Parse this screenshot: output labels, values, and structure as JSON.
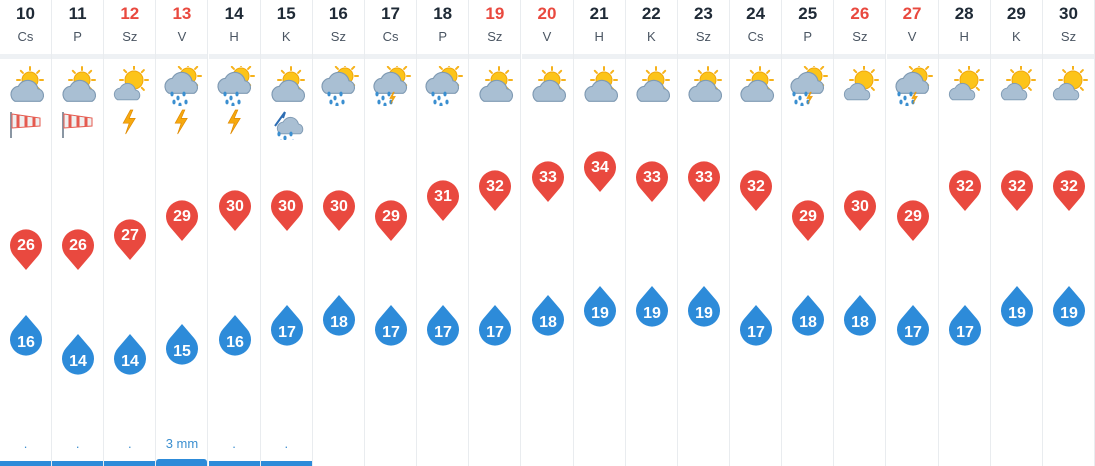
{
  "colors": {
    "max": "#e9493f",
    "min": "#2d8bd9",
    "weekend": "#e9493f",
    "precip": "#3b8fd0"
  },
  "scale": {
    "top_temp": 34,
    "top_y": 166,
    "bottom_temp": 14,
    "bottom_y": 360
  },
  "days": [
    {
      "num": "10",
      "letter": "Cs",
      "weekend": false,
      "icon": "partly-cloudy-icon",
      "extra": "windsock-icon",
      "max": 26,
      "min": 16,
      "precip": ".",
      "bar": true
    },
    {
      "num": "11",
      "letter": "P",
      "weekend": false,
      "icon": "partly-cloudy-icon",
      "extra": "windsock-icon",
      "max": 26,
      "min": 14,
      "precip": ".",
      "bar": true
    },
    {
      "num": "12",
      "letter": "Sz",
      "weekend": true,
      "icon": "sunny-cloud-icon",
      "extra": "lightning-icon",
      "max": 27,
      "min": 14,
      "precip": ".",
      "bar": true
    },
    {
      "num": "13",
      "letter": "V",
      "weekend": true,
      "icon": "rain-sun-cloud-icon",
      "extra": "lightning-icon",
      "max": 29,
      "min": 15,
      "precip": "3 mm",
      "bar": true,
      "thick": true
    },
    {
      "num": "14",
      "letter": "H",
      "weekend": false,
      "icon": "rain-sun-cloud-icon",
      "extra": "lightning-icon",
      "max": 30,
      "min": 16,
      "precip": ".",
      "bar": true
    },
    {
      "num": "15",
      "letter": "K",
      "weekend": false,
      "icon": "partly-cloudy-icon",
      "extra": "hail-storm-icon",
      "max": 30,
      "min": 17,
      "precip": ".",
      "bar": true
    },
    {
      "num": "16",
      "letter": "Sz",
      "weekend": false,
      "icon": "rain-sun-cloud-icon",
      "extra": "",
      "max": 30,
      "min": 18,
      "precip": "",
      "bar": false
    },
    {
      "num": "17",
      "letter": "Cs",
      "weekend": false,
      "icon": "thunder-rain-icon",
      "extra": "",
      "max": 29,
      "min": 17,
      "precip": "",
      "bar": false
    },
    {
      "num": "18",
      "letter": "P",
      "weekend": false,
      "icon": "rain-sun-cloud-icon",
      "extra": "",
      "max": 31,
      "min": 17,
      "precip": "",
      "bar": false
    },
    {
      "num": "19",
      "letter": "Sz",
      "weekend": true,
      "icon": "partly-cloudy-icon",
      "extra": "",
      "max": 32,
      "min": 17,
      "precip": "",
      "bar": false
    },
    {
      "num": "20",
      "letter": "V",
      "weekend": true,
      "icon": "partly-cloudy-icon",
      "extra": "",
      "max": 33,
      "min": 18,
      "precip": "",
      "bar": false
    },
    {
      "num": "21",
      "letter": "H",
      "weekend": false,
      "icon": "partly-cloudy-icon",
      "extra": "",
      "max": 34,
      "min": 19,
      "precip": "",
      "bar": false
    },
    {
      "num": "22",
      "letter": "K",
      "weekend": false,
      "icon": "partly-cloudy-icon",
      "extra": "",
      "max": 33,
      "min": 19,
      "precip": "",
      "bar": false
    },
    {
      "num": "23",
      "letter": "Sz",
      "weekend": false,
      "icon": "partly-cloudy-icon",
      "extra": "",
      "max": 33,
      "min": 19,
      "precip": "",
      "bar": false
    },
    {
      "num": "24",
      "letter": "Cs",
      "weekend": false,
      "icon": "partly-cloudy-icon",
      "extra": "",
      "max": 32,
      "min": 17,
      "precip": "",
      "bar": false
    },
    {
      "num": "25",
      "letter": "P",
      "weekend": false,
      "icon": "thunder-rain-icon",
      "extra": "",
      "max": 29,
      "min": 18,
      "precip": "",
      "bar": false
    },
    {
      "num": "26",
      "letter": "Sz",
      "weekend": true,
      "icon": "sunny-cloud-icon",
      "extra": "",
      "max": 30,
      "min": 18,
      "precip": "",
      "bar": false
    },
    {
      "num": "27",
      "letter": "V",
      "weekend": true,
      "icon": "thunder-rain-icon",
      "extra": "",
      "max": 29,
      "min": 17,
      "precip": "",
      "bar": false
    },
    {
      "num": "28",
      "letter": "H",
      "weekend": false,
      "icon": "sunny-cloud-icon",
      "extra": "",
      "max": 32,
      "min": 17,
      "precip": "",
      "bar": false
    },
    {
      "num": "29",
      "letter": "K",
      "weekend": false,
      "icon": "sunny-cloud-icon",
      "extra": "",
      "max": 32,
      "min": 19,
      "precip": "",
      "bar": false
    },
    {
      "num": "30",
      "letter": "Sz",
      "weekend": false,
      "icon": "sunny-cloud-icon",
      "extra": "",
      "max": 32,
      "min": 19,
      "precip": "",
      "bar": false
    }
  ]
}
